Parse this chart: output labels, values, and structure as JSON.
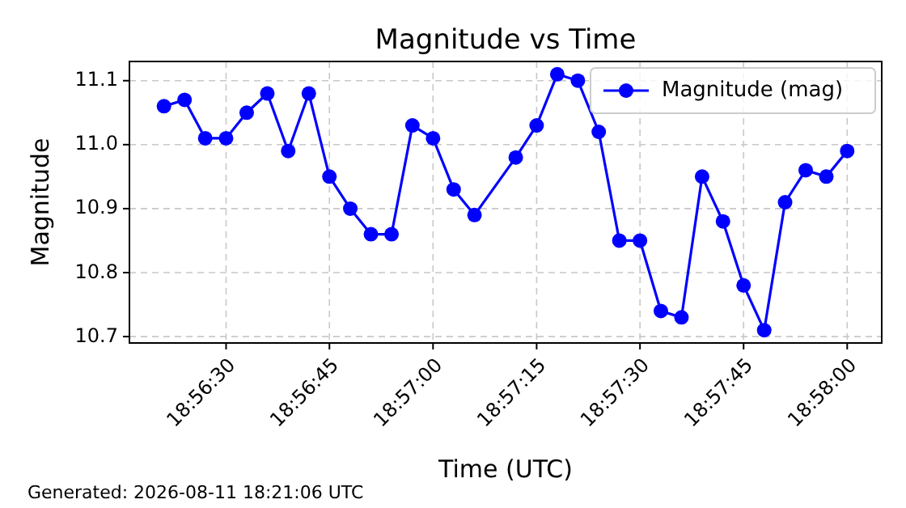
{
  "chart_data": {
    "type": "line",
    "title": "Magnitude vs Time",
    "xlabel": "Time (UTC)",
    "ylabel": "Magnitude",
    "annotations": [
      "Generated: 2026-08-11 18:21:06 UTC"
    ],
    "series": [
      {
        "name": "Magnitude (mag)",
        "color": "#0000ff",
        "x": [
          18.93917,
          18.94,
          18.94083,
          18.94167,
          18.9425,
          18.94333,
          18.94417,
          18.945,
          18.94583,
          18.94667,
          18.9475,
          18.94833,
          18.94917,
          18.95,
          18.95083,
          18.95167,
          18.95333,
          18.95417,
          18.955,
          18.95583,
          18.95667,
          18.9575,
          18.95833,
          18.95917,
          18.96,
          18.96083,
          18.96167,
          18.9625,
          18.96333,
          18.96417,
          18.965,
          18.96583,
          18.96667
        ],
        "values": [
          11.06,
          11.07,
          11.01,
          11.01,
          11.05,
          11.08,
          10.99,
          11.08,
          10.95,
          10.9,
          10.86,
          10.86,
          11.03,
          11.01,
          10.93,
          10.89,
          10.98,
          11.03,
          11.11,
          11.1,
          11.02,
          10.85,
          10.85,
          10.74,
          10.73,
          10.95,
          10.88,
          10.78,
          10.71,
          10.91,
          10.96,
          10.95,
          10.99
        ]
      }
    ],
    "xlim": [
      18.93778,
      18.96806
    ],
    "xticks": [
      {
        "value": 18.94167,
        "label": "18:56:30"
      },
      {
        "value": 18.94583,
        "label": "18:56:45"
      },
      {
        "value": 18.95,
        "label": "18:57:00"
      },
      {
        "value": 18.95417,
        "label": "18:57:15"
      },
      {
        "value": 18.95833,
        "label": "18:57:30"
      },
      {
        "value": 18.9625,
        "label": "18:57:45"
      },
      {
        "value": 18.96667,
        "label": "18:58:00"
      }
    ],
    "ylim": [
      10.69,
      11.13
    ],
    "yticks": [
      10.7,
      10.8,
      10.9,
      {
        "value": 11,
        "label": "11.0"
      },
      11.1
    ],
    "grid": true,
    "legend": "top right",
    "marker": "circle",
    "line_style": "solid"
  }
}
